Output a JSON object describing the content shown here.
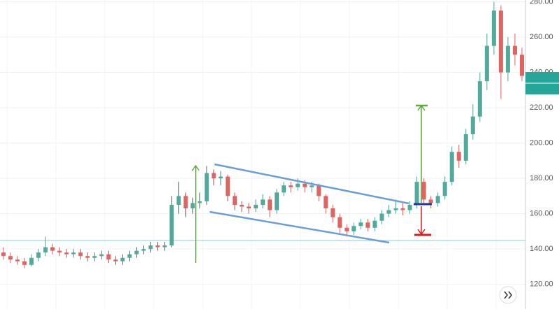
{
  "chart_data": {
    "type": "candlestick",
    "categories": [
      null,
      null,
      null,
      null,
      null,
      null,
      null,
      null,
      null,
      null,
      null,
      null,
      null,
      null,
      null,
      null,
      null,
      null,
      null,
      null,
      null,
      null,
      null,
      null,
      null,
      null,
      null,
      null,
      null,
      null,
      null,
      null,
      null,
      null,
      null,
      null,
      null,
      null,
      null,
      null,
      null,
      null,
      null,
      null,
      null,
      null,
      null,
      null,
      null,
      null,
      null,
      null,
      null,
      null,
      null,
      null,
      null,
      null,
      null,
      null,
      null,
      null,
      null,
      null,
      null,
      null,
      null,
      null,
      null,
      null,
      null,
      null,
      null,
      null,
      null
    ],
    "open": [
      138,
      136,
      134,
      133,
      131,
      135,
      138,
      141,
      139,
      138,
      137,
      138,
      136,
      135,
      136,
      137,
      134,
      133,
      135,
      137,
      139,
      140,
      142,
      141,
      142,
      165,
      170,
      163,
      166,
      167,
      183,
      180,
      181,
      170,
      165,
      164,
      163,
      165,
      168,
      162,
      172,
      176,
      175,
      177,
      175,
      176,
      170,
      163,
      158,
      152,
      150,
      153,
      155,
      152,
      156,
      160,
      162,
      163,
      162,
      165,
      178,
      168,
      166,
      170,
      178,
      195,
      190,
      205,
      215,
      235,
      255,
      275,
      240,
      255,
      250
    ],
    "high": [
      141,
      138,
      136,
      135,
      137,
      140,
      147,
      143,
      141,
      140,
      140,
      140,
      138,
      138,
      139,
      139,
      136,
      137,
      139,
      141,
      142,
      144,
      144,
      144,
      170,
      178,
      172,
      169,
      172,
      187,
      185,
      184,
      182,
      172,
      167,
      166,
      168,
      171,
      170,
      174,
      178,
      178,
      180,
      179,
      178,
      177,
      171,
      165,
      160,
      154,
      155,
      157,
      157,
      158,
      162,
      165,
      168,
      166,
      167,
      181,
      180,
      170,
      172,
      181,
      198,
      199,
      208,
      222,
      240,
      262,
      280,
      278,
      260,
      262,
      254
    ],
    "low": [
      134,
      132,
      131,
      129,
      130,
      133,
      136,
      137,
      136,
      135,
      135,
      134,
      133,
      133,
      134,
      132,
      131,
      131,
      133,
      135,
      137,
      138,
      139,
      139,
      141,
      160,
      158,
      160,
      163,
      165,
      176,
      176,
      167,
      162,
      161,
      160,
      161,
      163,
      158,
      160,
      170,
      172,
      173,
      172,
      172,
      167,
      160,
      155,
      149,
      147,
      148,
      151,
      150,
      150,
      154,
      158,
      160,
      159,
      160,
      163,
      165,
      163,
      164,
      168,
      176,
      186,
      188,
      202,
      212,
      230,
      250,
      225,
      235,
      244,
      235
    ],
    "close": [
      136,
      134,
      133,
      131,
      135,
      138,
      141,
      139,
      138,
      137,
      138,
      136,
      135,
      136,
      137,
      134,
      133,
      135,
      137,
      139,
      140,
      142,
      141,
      142,
      165,
      170,
      163,
      166,
      167,
      183,
      180,
      181,
      170,
      165,
      164,
      163,
      165,
      168,
      162,
      172,
      176,
      175,
      177,
      175,
      176,
      170,
      163,
      158,
      152,
      150,
      153,
      155,
      152,
      156,
      160,
      162,
      163,
      162,
      165,
      178,
      168,
      166,
      170,
      178,
      195,
      190,
      205,
      215,
      235,
      255,
      275,
      240,
      255,
      250,
      238
    ],
    "up_color": "#53a99a",
    "down_color": "#e0645f",
    "ylim": [
      106,
      281
    ],
    "yticks": [
      {
        "value": 120,
        "label": "120.00"
      },
      {
        "value": 140,
        "label": "140.00"
      },
      {
        "value": 160,
        "label": "160.00"
      },
      {
        "value": 180,
        "label": "180.00"
      },
      {
        "value": 200,
        "label": "200.00"
      },
      {
        "value": 220,
        "label": "220.00"
      },
      {
        "value": 240,
        "label": "240.00"
      },
      {
        "value": 260,
        "label": "260.00"
      },
      {
        "value": 280,
        "label": "280.00"
      }
    ],
    "grid": true
  }
}
